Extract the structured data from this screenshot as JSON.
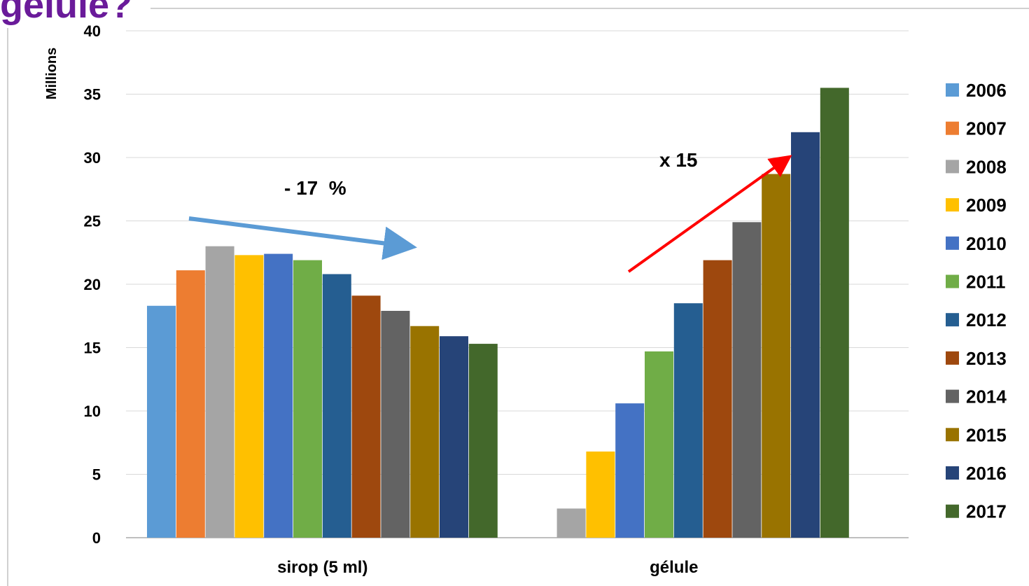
{
  "page": {
    "heading_fragment": "gélule?"
  },
  "chart_data": {
    "type": "bar",
    "title": "",
    "xlabel": "",
    "ylabel": "Millions",
    "ylim": [
      0,
      40
    ],
    "yticks": [
      "0",
      "5",
      "10",
      "15",
      "20",
      "25",
      "30",
      "35",
      "40"
    ],
    "categories": [
      "sirop (5 ml)",
      "gélule"
    ],
    "grid": true,
    "legend": "right",
    "series": [
      {
        "name": "2006",
        "color": "#5b9bd5",
        "values": [
          18.3,
          null
        ]
      },
      {
        "name": "2007",
        "color": "#ed7d31",
        "values": [
          21.1,
          null
        ]
      },
      {
        "name": "2008",
        "color": "#a5a5a5",
        "values": [
          23.0,
          2.3
        ]
      },
      {
        "name": "2009",
        "color": "#ffc000",
        "values": [
          22.3,
          6.8
        ]
      },
      {
        "name": "2010",
        "color": "#4472c4",
        "values": [
          22.4,
          10.6
        ]
      },
      {
        "name": "2011",
        "color": "#70ad47",
        "values": [
          21.9,
          14.7
        ]
      },
      {
        "name": "2012",
        "color": "#255e91",
        "values": [
          20.8,
          18.5
        ]
      },
      {
        "name": "2013",
        "color": "#9e480e",
        "values": [
          19.1,
          21.9
        ]
      },
      {
        "name": "2014",
        "color": "#636363",
        "values": [
          17.9,
          24.9
        ]
      },
      {
        "name": "2015",
        "color": "#997300",
        "values": [
          16.7,
          28.7
        ]
      },
      {
        "name": "2016",
        "color": "#264478",
        "values": [
          15.9,
          32.0
        ]
      },
      {
        "name": "2017",
        "color": "#43682b",
        "values": [
          15.3,
          35.5
        ]
      }
    ],
    "annotations": [
      {
        "text": "- 17  %",
        "arrow_color": "#5b9bd5"
      },
      {
        "text": "x 15",
        "arrow_color": "#ff0000"
      }
    ]
  }
}
